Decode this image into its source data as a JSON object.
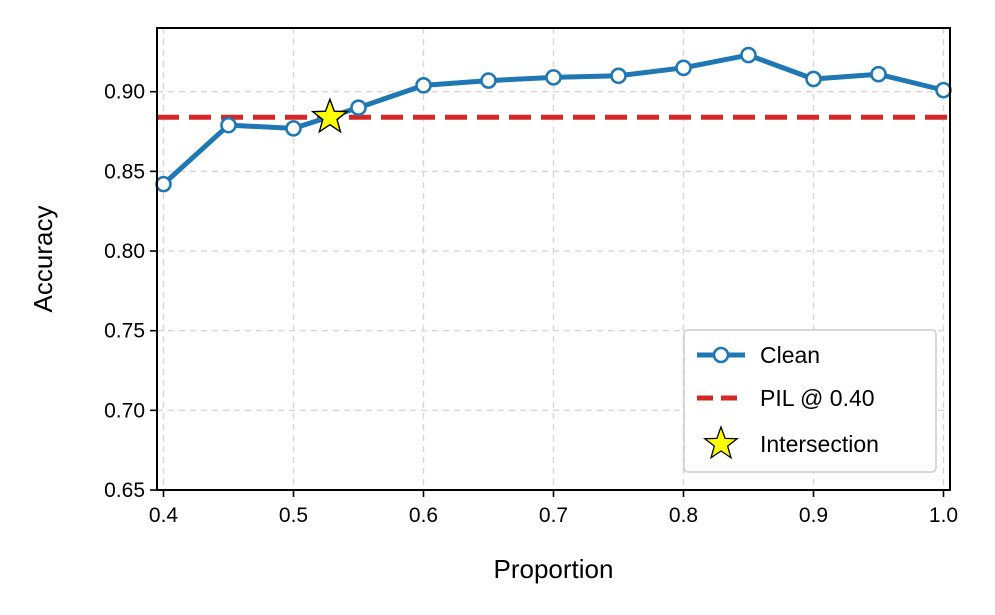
{
  "chart_data": {
    "type": "line",
    "title": "",
    "xlabel": "Proportion",
    "ylabel": "Accuracy",
    "xlim": [
      0.395,
      1.005
    ],
    "ylim": [
      0.65,
      0.94
    ],
    "xticks": [
      0.4,
      0.5,
      0.6,
      0.7,
      0.8,
      0.9,
      1.0
    ],
    "xtick_labels": [
      "0.4",
      "0.5",
      "0.6",
      "0.7",
      "0.8",
      "0.9",
      "1.0"
    ],
    "yticks": [
      0.65,
      0.7,
      0.75,
      0.8,
      0.85,
      0.9
    ],
    "ytick_labels": [
      "0.65",
      "0.70",
      "0.75",
      "0.80",
      "0.85",
      "0.90"
    ],
    "grid": true,
    "legend_position": "lower-right",
    "series": [
      {
        "name": "Clean",
        "style": "solid line with open circle markers",
        "color": "#1f77b4",
        "x": [
          0.4,
          0.45,
          0.5,
          0.55,
          0.6,
          0.65,
          0.7,
          0.75,
          0.8,
          0.85,
          0.9,
          0.95,
          1.0
        ],
        "y": [
          0.842,
          0.879,
          0.877,
          0.89,
          0.904,
          0.907,
          0.909,
          0.91,
          0.915,
          0.923,
          0.908,
          0.911,
          0.901
        ]
      },
      {
        "name": "PIL @ 0.40",
        "style": "dashed horizontal line",
        "color": "#d62728",
        "y_const": 0.884
      }
    ],
    "annotations": [
      {
        "name": "Intersection",
        "marker": "star",
        "color": "#ffff00",
        "x": 0.528,
        "y": 0.884
      }
    ]
  }
}
